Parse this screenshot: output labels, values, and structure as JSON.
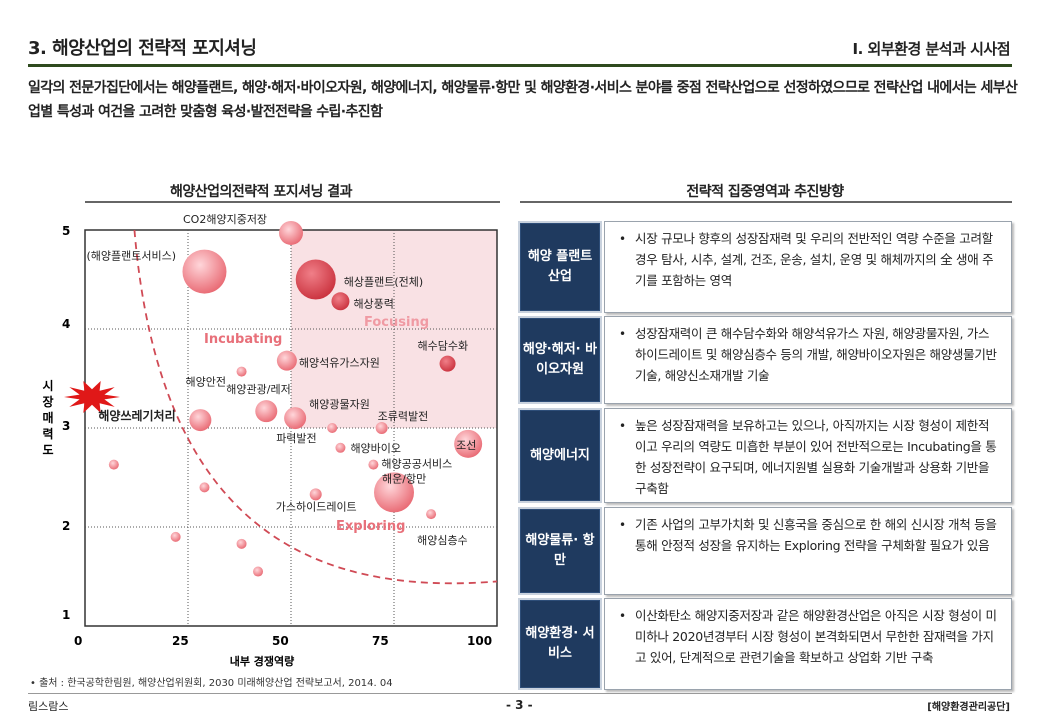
{
  "header": {
    "title": "3. 해양산업의 전략적 포지셔닝",
    "section": "I. 외부환경 분석과 시사점"
  },
  "intro": "일각의 전문가집단에서는 해양플랜트, 해양·해저·바이오자원, 해양에너지, 해양물류·항만 및 해양환경·서비스 분야를 중점 전략산업으로 선정하였으므로 전략산업 내에서는 세부산업별 특성과 여건을 고려한 맞춤형 육성·발전전략을 수립·추진함",
  "left_panel": {
    "heading": "해양산업의전략적 포지셔닝 결과"
  },
  "right_panel": {
    "heading": "전략적 집중영역과 추진방향"
  },
  "chart_data": {
    "type": "scatter",
    "xlabel": "내부 경쟁역량",
    "ylabel": "시장매력도",
    "xlim": [
      0,
      100
    ],
    "ylim": [
      1,
      5
    ],
    "xticks": [
      "0",
      "25",
      "50",
      "75",
      "100"
    ],
    "yticks": [
      "5",
      "4",
      "3",
      "2",
      "1"
    ],
    "zones": [
      "Focusing",
      "Incubating",
      "Exploring"
    ],
    "points": [
      {
        "label": "CO2해양지중저장",
        "x": 50,
        "y": 4.97,
        "r": 12
      },
      {
        "label": "(해양플랜트서비스)",
        "x": 29,
        "y": 4.58,
        "r": 22
      },
      {
        "label": "해상플랜트(전체)",
        "x": 56,
        "y": 4.5,
        "r": 20
      },
      {
        "label": "해상풍력",
        "x": 62,
        "y": 4.28,
        "r": 9
      },
      {
        "label": "해수담수화",
        "x": 88,
        "y": 3.65,
        "r": 8
      },
      {
        "label": "해양석유가스자원",
        "x": 49,
        "y": 3.68,
        "r": 10
      },
      {
        "label": "해양안전",
        "x": 38,
        "y": 3.57,
        "r": 5
      },
      {
        "label": "해양관광/레저",
        "x": 44,
        "y": 3.17,
        "r": 11
      },
      {
        "label": "해양광물자원",
        "x": 51,
        "y": 3.1,
        "r": 11
      },
      {
        "label": "해양쓰레기처리",
        "x": 28,
        "y": 3.08,
        "r": 11
      },
      {
        "label": "조류력발전",
        "x": 72,
        "y": 3.0,
        "r": 6
      },
      {
        "label": "파력발전",
        "x": 60,
        "y": 3.0,
        "r": 5
      },
      {
        "label": "조선",
        "x": 93,
        "y": 2.84,
        "r": 14
      },
      {
        "label": "해양바이오",
        "x": 62,
        "y": 2.8,
        "r": 5
      },
      {
        "label": "해양공공서비스",
        "x": 70,
        "y": 2.63,
        "r": 5
      },
      {
        "label": "해운/항만",
        "x": 75,
        "y": 2.35,
        "r": 20
      },
      {
        "label": "가스하이드레이트",
        "x": 56,
        "y": 2.33,
        "r": 6
      },
      {
        "label": "해양심층수",
        "x": 84,
        "y": 2.13,
        "r": 5
      },
      {
        "label": "",
        "x": 7,
        "y": 2.63,
        "r": 5
      },
      {
        "label": "",
        "x": 29,
        "y": 2.4,
        "r": 5
      },
      {
        "label": "",
        "x": 22,
        "y": 1.9,
        "r": 5
      },
      {
        "label": "",
        "x": 38,
        "y": 1.83,
        "r": 5
      },
      {
        "label": "",
        "x": 42,
        "y": 1.55,
        "r": 5
      }
    ]
  },
  "strategy_rows": [
    {
      "label": "해양 플랜트 산업",
      "text": "시장 규모나 향후의 성장잠재력 및 우리의 전반적인 역량 수준을 고려할 경우 탐사, 시추, 설계, 건조, 운송, 설치, 운영 및 해체까지의 全 생애 주기를 포함하는 영역"
    },
    {
      "label": "해양·해저· 바이오자원",
      "text": "성장잠재력이 큰 해수담수화와 해양석유가스 자원, 해양광물자원, 가스하이드레이트 및 해양심층수 등의 개발, 해양바이오자원은 해양생물기반 기술, 해양신소재개발 기술"
    },
    {
      "label": "해양에너지",
      "text": "높은 성장잠재력을 보유하고는 있으나, 아직까지는 시장 형성이 제한적이고 우리의 역량도 미흡한 부분이 있어 전반적으로는 Incubating을 통한 성장전략이 요구되며, 에너지원별 실용화 기술개발과 상용화 기반을 구축함"
    },
    {
      "label": "해양물류· 항만",
      "text": "기존 사업의 고부가치화 및 신흥국을 중심으로 한 해외 신시장 개척 등을 통해 안정적 성장을 유지하는 Exploring 전략을 구체화할 필요가 있음"
    },
    {
      "label": "해양환경· 서비스",
      "text": "이산화탄소 해양지중저장과 같은 해양환경산업은 아직은 시장 형성이 미미하나 2020년경부터 시장 형성이 본격화되면서 무한한 잠재력을 가지고 있어, 단계적으로 관련기술을 확보하고 상업화 기반 구축"
    }
  ],
  "footer": {
    "source": "• 출처 : 한국공학한림원, 해양산업위원회, 2030 미래해양산업 전략보고서, 2014. 04",
    "left": "림스람스",
    "page": "- 3 -",
    "right": "[해양환경관리공단]"
  },
  "colors": {
    "bubble": "#e05560",
    "bubble_light": "#f2a6ae",
    "focus_zone": "#f9e1e4",
    "label_bg": "#1f3a5f"
  }
}
